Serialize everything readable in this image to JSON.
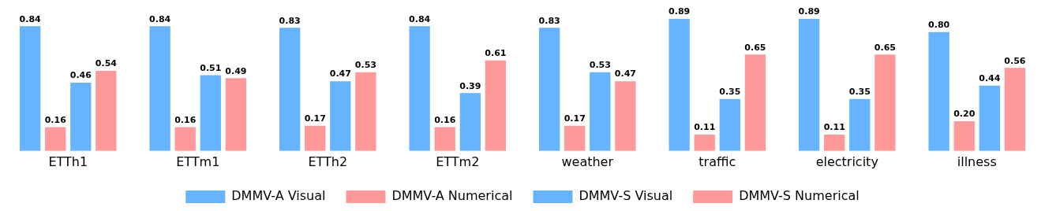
{
  "chart_data": {
    "type": "bar",
    "categories": [
      "ETTh1",
      "ETTm1",
      "ETTh2",
      "ETTm2",
      "weather",
      "traffic",
      "electricity",
      "illness"
    ],
    "series": [
      {
        "name": "DMMV-A Visual",
        "color": "#66b3ff",
        "values": [
          0.84,
          0.84,
          0.83,
          0.84,
          0.83,
          0.89,
          0.89,
          0.8
        ],
        "value_labels": [
          "0.84",
          "0.84",
          "0.83",
          "0.84",
          "0.83",
          "0.89",
          "0.89",
          "0.80"
        ]
      },
      {
        "name": "DMMV-A Numerical",
        "color": "#ff9999",
        "values": [
          0.16,
          0.16,
          0.17,
          0.16,
          0.17,
          0.11,
          0.11,
          0.2
        ],
        "value_labels": [
          "0.16",
          "0.16",
          "0.17",
          "0.16",
          "0.17",
          "0.11",
          "0.11",
          "0.20"
        ]
      },
      {
        "name": "DMMV-S Visual",
        "color": "#66b3ff",
        "values": [
          0.46,
          0.51,
          0.47,
          0.39,
          0.53,
          0.35,
          0.35,
          0.44
        ],
        "value_labels": [
          "0.46",
          "0.51",
          "0.47",
          "0.39",
          "0.53",
          "0.35",
          "0.35",
          "0.44"
        ]
      },
      {
        "name": "DMMV-S Numerical",
        "color": "#ff9999",
        "values": [
          0.54,
          0.49,
          0.53,
          0.61,
          0.47,
          0.65,
          0.65,
          0.56
        ],
        "value_labels": [
          "0.54",
          "0.49",
          "0.53",
          "0.61",
          "0.47",
          "0.65",
          "0.65",
          "0.56"
        ]
      }
    ],
    "ylim": [
      0,
      0.9
    ],
    "tick_labels": "x",
    "grid": false,
    "legend": "bottom"
  }
}
